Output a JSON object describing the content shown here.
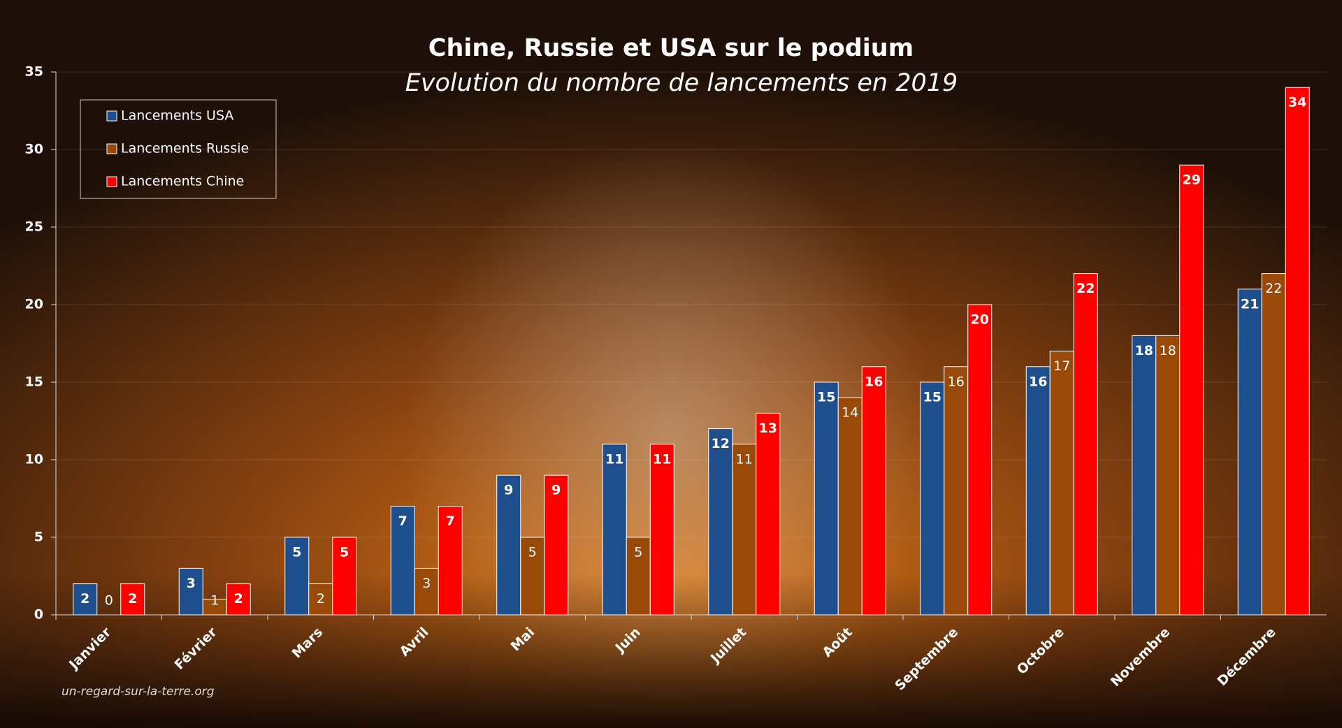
{
  "chart_data": {
    "type": "bar",
    "title": "Chine, Russie et USA sur le podium",
    "subtitle": "Evolution du nombre de lancements en 2019",
    "source": "un-regard-sur-la-terre.org",
    "categories": [
      "Janvier",
      "Février",
      "Mars",
      "Avril",
      "Mai",
      "Juin",
      "Juillet",
      "Août",
      "Septembre",
      "Octobre",
      "Novembre",
      "Décembre"
    ],
    "series": [
      {
        "name": "Lancements USA",
        "color": "#1f4e8c",
        "values": [
          2,
          3,
          5,
          7,
          9,
          11,
          12,
          15,
          15,
          16,
          18,
          21
        ]
      },
      {
        "name": "Lancements Russie",
        "color": "#9a4a08",
        "values": [
          0,
          1,
          2,
          3,
          5,
          5,
          11,
          14,
          16,
          17,
          18,
          22
        ]
      },
      {
        "name": "Lancements Chine",
        "color": "#ff0000",
        "values": [
          2,
          2,
          5,
          7,
          9,
          11,
          13,
          16,
          20,
          22,
          29,
          34
        ]
      }
    ],
    "ylim": [
      0,
      35
    ],
    "yticks": [
      0,
      5,
      10,
      15,
      20,
      25,
      30,
      35
    ],
    "grid": true,
    "legend": "top-left"
  }
}
